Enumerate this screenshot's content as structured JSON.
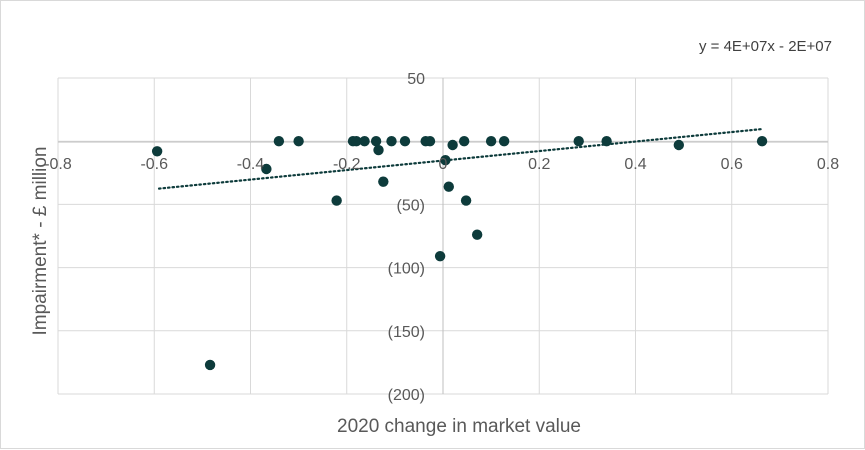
{
  "chart_data": {
    "type": "scatter",
    "title": "",
    "xlabel": "2020 change in market value",
    "ylabel": "Impairment* - £ million",
    "xlim": [
      -0.8,
      0.8
    ],
    "ylim": [
      -200,
      50
    ],
    "x_ticks": [
      -0.8,
      -0.6,
      -0.4,
      -0.2,
      0,
      0.2,
      0.4,
      0.6,
      0.8
    ],
    "x_tick_labels": [
      "-0.8",
      "-0.6",
      "-0.4",
      "-0.2",
      "0",
      "0.2",
      "0.4",
      "0.6",
      "0.8"
    ],
    "y_ticks": [
      50,
      0,
      -50,
      -100,
      -150,
      -200
    ],
    "y_tick_labels": [
      "50",
      "",
      "(50)",
      "(100)",
      "(150)",
      "(200)"
    ],
    "grid": true,
    "legend": "none",
    "marker_color": "#0d3b3b",
    "trendline": {
      "type": "linear",
      "style": "dotted",
      "color": "#0d3b3b",
      "x_range": [
        -0.59,
        0.66
      ],
      "y_range": [
        -37.5,
        9.5
      ],
      "equation_label": "y = 4E+07x - 2E+07"
    },
    "series": [
      {
        "points": [
          {
            "x": -0.594,
            "y": -8
          },
          {
            "x": -0.484,
            "y": -177
          },
          {
            "x": -0.367,
            "y": -22
          },
          {
            "x": -0.341,
            "y": 0
          },
          {
            "x": -0.3,
            "y": 0
          },
          {
            "x": -0.221,
            "y": -47
          },
          {
            "x": -0.187,
            "y": 0
          },
          {
            "x": -0.18,
            "y": 0
          },
          {
            "x": -0.163,
            "y": 0
          },
          {
            "x": -0.139,
            "y": 0
          },
          {
            "x": -0.134,
            "y": -7
          },
          {
            "x": -0.124,
            "y": -32
          },
          {
            "x": -0.107,
            "y": 0
          },
          {
            "x": -0.079,
            "y": 0
          },
          {
            "x": -0.036,
            "y": 0
          },
          {
            "x": -0.027,
            "y": 0
          },
          {
            "x": -0.006,
            "y": -91
          },
          {
            "x": 0.005,
            "y": -15
          },
          {
            "x": 0.012,
            "y": -36
          },
          {
            "x": 0.02,
            "y": -3
          },
          {
            "x": 0.044,
            "y": 0
          },
          {
            "x": 0.048,
            "y": -47
          },
          {
            "x": 0.071,
            "y": -74
          },
          {
            "x": 0.1,
            "y": 0
          },
          {
            "x": 0.127,
            "y": 0
          },
          {
            "x": 0.282,
            "y": 0
          },
          {
            "x": 0.34,
            "y": 0
          },
          {
            "x": 0.49,
            "y": -3
          },
          {
            "x": 0.663,
            "y": 0
          }
        ]
      }
    ]
  }
}
